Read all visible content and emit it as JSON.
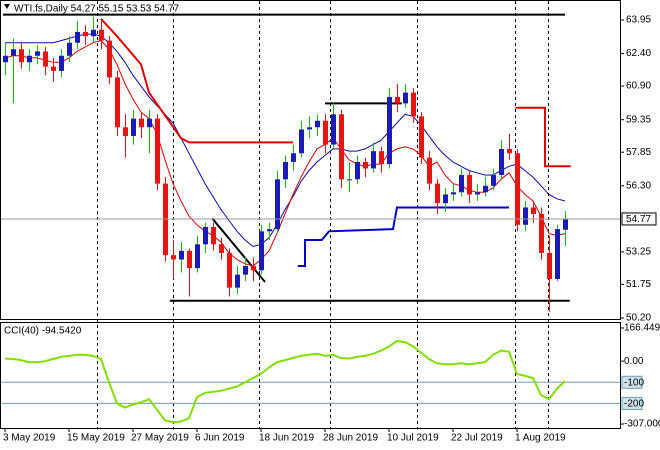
{
  "chart_data": [
    {
      "type": "candlestick",
      "title": "WTI.fs,Daily 54.27 55.15 53.53 54.77",
      "categories": [
        "3 May 2019",
        null,
        null,
        null,
        null,
        null,
        null,
        null,
        "15 May 2019",
        null,
        null,
        null,
        null,
        null,
        null,
        null,
        "27 May 2019",
        null,
        null,
        null,
        null,
        null,
        null,
        null,
        "6 Jun 2019",
        null,
        null,
        null,
        null,
        null,
        null,
        null,
        "18 Jun 2019",
        null,
        null,
        null,
        null,
        null,
        null,
        null,
        "28 Jun 2019",
        null,
        null,
        null,
        null,
        null,
        null,
        null,
        "10 Jul 2019",
        null,
        null,
        null,
        null,
        null,
        null,
        null,
        "22 Jul 2019",
        null,
        null,
        null,
        null,
        null,
        null,
        null,
        "1 Aug 2019",
        null,
        null,
        null,
        null,
        null,
        null
      ],
      "ohlc": [
        [
          62.0,
          62.9,
          61.4,
          62.3
        ],
        [
          62.3,
          63.1,
          60.1,
          62.6
        ],
        [
          62.6,
          62.9,
          61.7,
          62.0
        ],
        [
          62.0,
          62.6,
          61.6,
          62.3
        ],
        [
          62.3,
          62.8,
          61.9,
          62.5
        ],
        [
          62.5,
          62.7,
          61.4,
          61.8
        ],
        [
          61.8,
          62.2,
          61.1,
          61.6
        ],
        [
          61.6,
          62.6,
          61.3,
          62.3
        ],
        [
          62.3,
          63.2,
          62.0,
          62.9
        ],
        [
          62.9,
          63.9,
          62.6,
          63.4
        ],
        [
          63.4,
          63.7,
          62.8,
          63.2
        ],
        [
          63.2,
          64.1,
          62.9,
          63.5
        ],
        [
          63.5,
          63.9,
          62.6,
          63.0
        ],
        [
          63.0,
          63.2,
          61.0,
          61.3
        ],
        [
          61.3,
          61.6,
          58.6,
          59.0
        ],
        [
          59.0,
          59.6,
          57.6,
          58.6
        ],
        [
          58.6,
          59.8,
          58.2,
          59.4
        ],
        [
          59.4,
          59.7,
          58.5,
          59.0
        ],
        [
          59.0,
          59.8,
          57.8,
          59.4
        ],
        [
          59.4,
          59.6,
          56.1,
          56.4
        ],
        [
          56.4,
          56.7,
          52.8,
          53.1
        ],
        [
          53.1,
          53.8,
          52.0,
          52.9
        ],
        [
          52.9,
          53.7,
          52.3,
          53.3
        ],
        [
          53.3,
          53.4,
          51.2,
          52.5
        ],
        [
          52.5,
          54.0,
          52.3,
          53.6
        ],
        [
          53.6,
          54.6,
          53.2,
          54.4
        ],
        [
          54.4,
          54.6,
          53.3,
          53.6
        ],
        [
          53.6,
          53.9,
          52.9,
          53.2
        ],
        [
          53.2,
          53.4,
          51.2,
          51.6
        ],
        [
          51.6,
          52.6,
          51.3,
          52.2
        ],
        [
          52.2,
          53.0,
          51.9,
          52.6
        ],
        [
          52.6,
          53.0,
          51.9,
          52.4
        ],
        [
          52.4,
          54.5,
          52.2,
          54.2
        ],
        [
          54.2,
          54.6,
          53.8,
          54.3
        ],
        [
          54.3,
          57.0,
          54.1,
          56.6
        ],
        [
          56.6,
          57.7,
          56.2,
          57.4
        ],
        [
          57.4,
          58.2,
          57.0,
          57.8
        ],
        [
          57.8,
          59.3,
          57.6,
          58.9
        ],
        [
          58.9,
          59.5,
          58.5,
          59.0
        ],
        [
          59.0,
          59.6,
          58.6,
          59.3
        ],
        [
          59.3,
          59.6,
          57.8,
          58.2
        ],
        [
          58.2,
          60.1,
          58.0,
          59.6
        ],
        [
          59.6,
          59.8,
          56.2,
          56.6
        ],
        [
          56.6,
          57.4,
          56.0,
          56.6
        ],
        [
          56.6,
          57.7,
          56.4,
          57.4
        ],
        [
          57.4,
          57.6,
          56.7,
          57.1
        ],
        [
          57.1,
          58.3,
          56.9,
          57.9
        ],
        [
          57.9,
          58.1,
          56.9,
          57.3
        ],
        [
          57.3,
          60.8,
          57.1,
          60.4
        ],
        [
          60.4,
          61.0,
          59.7,
          60.1
        ],
        [
          60.1,
          61.0,
          59.9,
          60.6
        ],
        [
          60.6,
          60.8,
          59.2,
          59.5
        ],
        [
          59.5,
          59.7,
          57.3,
          57.6
        ],
        [
          57.6,
          57.9,
          56.1,
          56.4
        ],
        [
          56.4,
          56.6,
          55.0,
          55.5
        ],
        [
          55.5,
          56.2,
          55.1,
          55.9
        ],
        [
          55.9,
          56.4,
          55.6,
          56.0
        ],
        [
          56.0,
          57.1,
          55.8,
          56.8
        ],
        [
          56.8,
          57.0,
          55.5,
          55.9
        ],
        [
          55.9,
          56.4,
          55.6,
          56.0
        ],
        [
          56.0,
          56.7,
          55.8,
          56.3
        ],
        [
          56.3,
          57.1,
          56.1,
          56.8
        ],
        [
          56.8,
          58.4,
          56.6,
          58.0
        ],
        [
          58.0,
          58.7,
          57.5,
          57.8
        ],
        [
          57.8,
          58.0,
          54.2,
          54.5
        ],
        [
          54.5,
          55.6,
          54.2,
          55.3
        ],
        [
          55.3,
          55.6,
          54.6,
          55.0
        ],
        [
          55.0,
          55.3,
          52.9,
          53.2
        ],
        [
          53.2,
          54.0,
          50.5,
          52.0
        ],
        [
          52.0,
          54.5,
          51.9,
          54.3
        ],
        [
          54.27,
          55.15,
          53.53,
          54.77
        ]
      ],
      "up_color": "#1c1cb4",
      "down_color": "#e81414",
      "up_wick_color": "#22b422",
      "down_wick_color": "#e81414",
      "series": [
        {
          "color": "#0a0ab4",
          "values": [
            62.9,
            62.9,
            62.9,
            62.9,
            62.9,
            62.9,
            62.9,
            63.0,
            63.1,
            63.2,
            63.3,
            63.3,
            63.2,
            62.9,
            62.5,
            62.0,
            61.4,
            60.9,
            60.4,
            60.0,
            59.6,
            59.2,
            58.5,
            57.8,
            57.1,
            56.4,
            55.8,
            55.2,
            54.7,
            54.2,
            53.8,
            53.5,
            53.6,
            53.9,
            54.5,
            55.2,
            55.8,
            56.5,
            57.0,
            57.4,
            57.7,
            58.0,
            58.0,
            57.9,
            57.9,
            58.0,
            58.2,
            58.4,
            58.8,
            59.2,
            59.6,
            59.5,
            59.1,
            58.6,
            58.1,
            57.7,
            57.4,
            57.2,
            57.0,
            56.9,
            56.8,
            56.8,
            57.0,
            57.2,
            57.3,
            57.0,
            56.7,
            56.3,
            55.9,
            55.7,
            55.6
          ]
        },
        {
          "color": "#e00000",
          "values": [
            62.2,
            62.3,
            62.3,
            62.2,
            62.2,
            62.1,
            62.0,
            62.0,
            62.2,
            62.5,
            62.7,
            62.9,
            63.0,
            62.6,
            61.9,
            61.0,
            60.3,
            59.7,
            59.4,
            58.7,
            57.5,
            56.4,
            55.6,
            54.9,
            54.5,
            54.2,
            54.0,
            53.7,
            53.2,
            52.9,
            52.7,
            52.6,
            52.9,
            53.3,
            54.1,
            55.0,
            55.9,
            56.7,
            57.4,
            58.0,
            58.2,
            58.5,
            58.0,
            57.5,
            57.3,
            57.2,
            57.3,
            57.3,
            57.8,
            58.0,
            58.1,
            58.0,
            57.7,
            57.2,
            57.4,
            56.8,
            56.4,
            56.3,
            56.1,
            56.0,
            56.0,
            56.2,
            56.6,
            56.9,
            56.3,
            55.9,
            55.6,
            54.9,
            54.1,
            54.0,
            54.1
          ]
        }
      ],
      "step_lines": [
        {
          "color": "#e00000",
          "x": [
            12,
            14,
            17,
            18,
            22,
            23,
            36
          ],
          "values": [
            64.0,
            63.2,
            61.9,
            60.6,
            58.5,
            58.3,
            58.3
          ]
        },
        {
          "color": "#e00000",
          "x": [
            63.8,
            67.5,
            67.5,
            70.7
          ],
          "values": [
            59.9,
            59.9,
            57.2,
            57.2
          ]
        },
        {
          "color": "#0000c8",
          "x": [
            36.6,
            37.5,
            37.5,
            39.6,
            40.5,
            48.5,
            49,
            63
          ],
          "values": [
            52.6,
            52.6,
            53.8,
            53.8,
            54.2,
            54.3,
            55.3,
            55.3
          ]
        }
      ],
      "trendlines": [
        {
          "color": "#000000",
          "x": [
            -0.25,
            70
          ],
          "values": [
            64.2,
            64.2
          ]
        },
        {
          "color": "#000000",
          "x": [
            20.6,
            70.6
          ],
          "values": [
            51.0,
            51.0
          ]
        },
        {
          "color": "#000000",
          "x": [
            40,
            49.6
          ],
          "values": [
            60.1,
            60.1
          ]
        },
        {
          "color": "#000000",
          "x": [
            25.9,
            32.5
          ],
          "values": [
            54.8,
            51.86
          ]
        }
      ],
      "ylim": [
        50.2,
        64.78
      ],
      "yticks": [
        63.95,
        {
          "value": 62.4,
          "label": "62.40"
        },
        {
          "value": 60.9,
          "label": "60.90"
        },
        59.35,
        57.85,
        {
          "value": 56.3,
          "label": "56.30"
        },
        53.25,
        51.75,
        {
          "value": 50.2,
          "label": "50.20"
        }
      ]
    },
    {
      "type": "line",
      "title": "CCI(40) -94.5420",
      "series": [
        {
          "color": "#7fe000",
          "values": [
            12,
            10,
            5,
            -5,
            -5,
            0,
            10,
            20,
            25,
            30,
            30,
            25,
            10,
            -100,
            -200,
            -220,
            -205,
            -195,
            -180,
            -230,
            -280,
            -290,
            -285,
            -270,
            -170,
            -150,
            -145,
            -140,
            -130,
            -120,
            -100,
            -80,
            -60,
            -30,
            -5,
            5,
            15,
            25,
            30,
            35,
            25,
            30,
            15,
            12,
            20,
            25,
            35,
            50,
            70,
            95,
            90,
            70,
            40,
            10,
            -10,
            -15,
            -15,
            -10,
            -15,
            -10,
            -5,
            30,
            50,
            45,
            -60,
            -70,
            -80,
            -160,
            -180,
            -130,
            -94.542
          ]
        }
      ],
      "ylim": [
        -307,
        166.4497
      ],
      "yticks": [
        166.4497,
        {
          "value": 0,
          "label": "0.00"
        },
        {
          "value": -307,
          "label": "-307.0000"
        }
      ],
      "levels": [
        -100,
        -200
      ]
    }
  ]
}
